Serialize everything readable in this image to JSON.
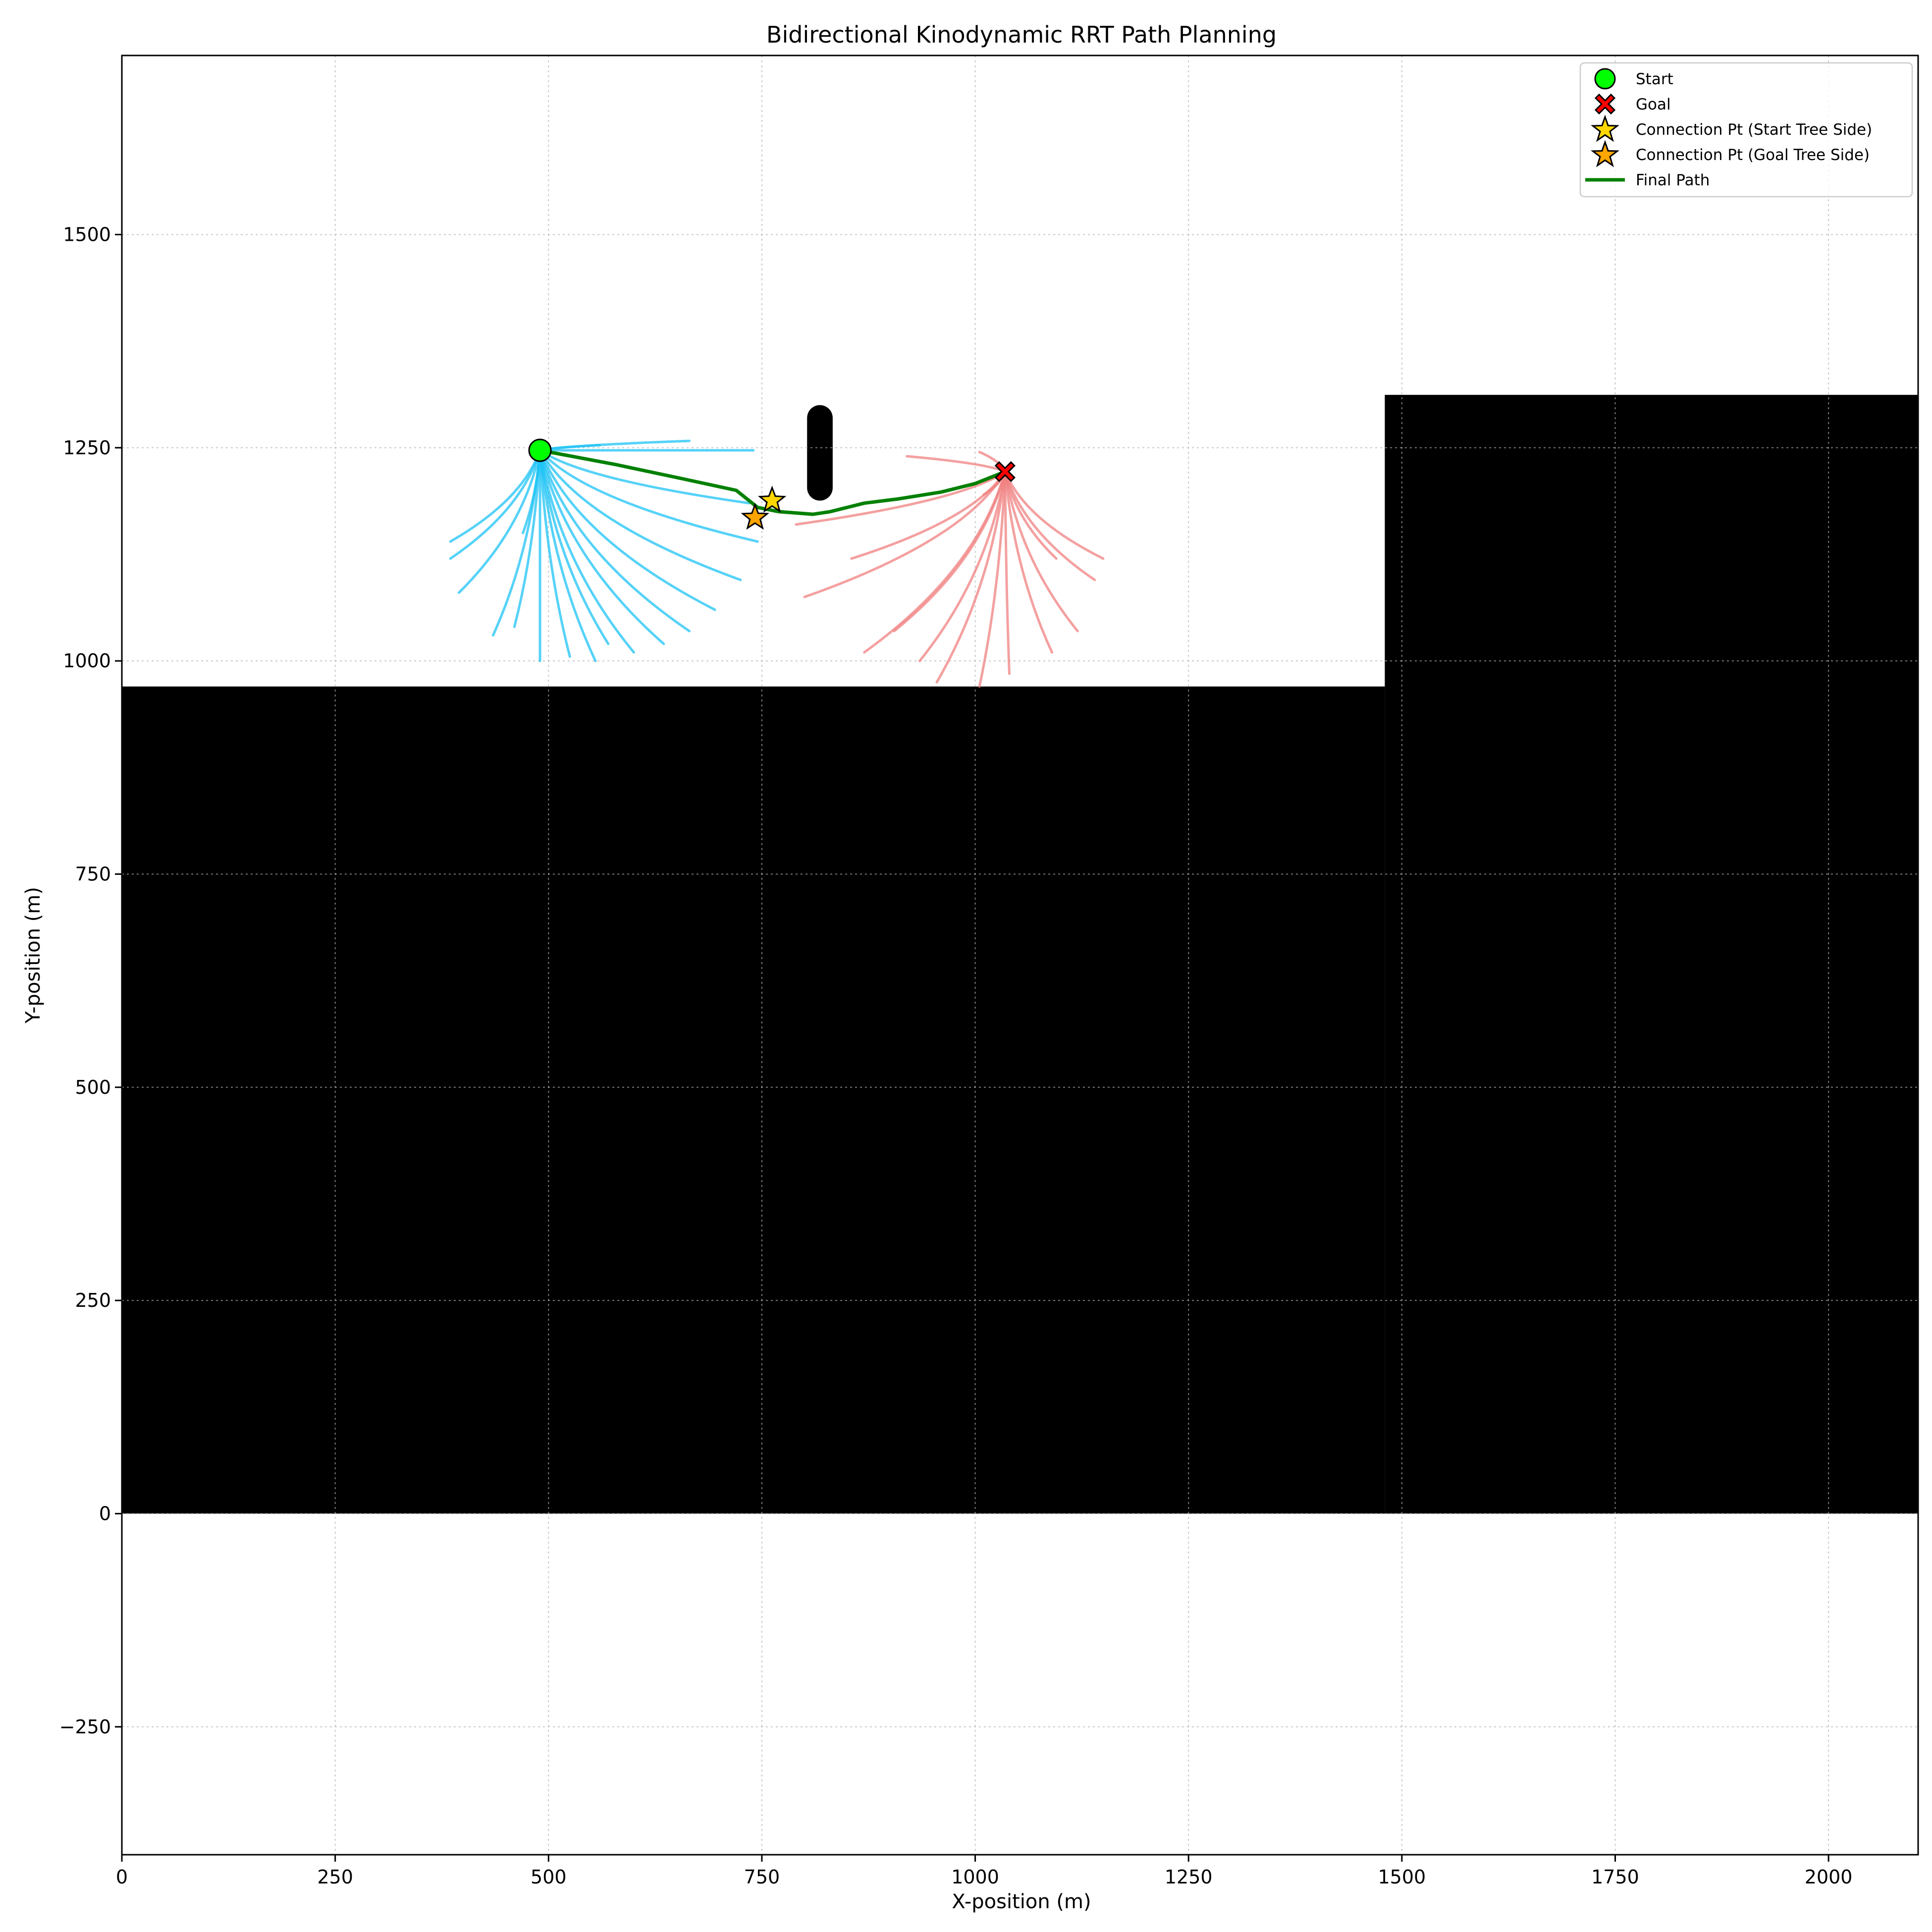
{
  "chart_data": {
    "type": "scatter",
    "title": "Bidirectional Kinodynamic RRT Path Planning",
    "xlabel": "X-position (m)",
    "ylabel": "Y-position (m)",
    "xlim": [
      0,
      2105
    ],
    "ylim": [
      -400,
      1710
    ],
    "xticks": [
      0,
      250,
      500,
      750,
      1000,
      1250,
      1500,
      1750,
      2000
    ],
    "yticks": [
      -250,
      0,
      250,
      500,
      750,
      1000,
      1250,
      1500
    ],
    "xtick_labels": [
      "0",
      "250",
      "500",
      "750",
      "1000",
      "1250",
      "1500",
      "1750",
      "2000"
    ],
    "ytick_labels": [
      "−250",
      "0",
      "250",
      "500",
      "750",
      "1000",
      "1250",
      "1500"
    ],
    "grid": true,
    "legend_position": "top-right",
    "legend": [
      {
        "label": "Start",
        "marker": "circle",
        "color": "#00ff00"
      },
      {
        "label": "Goal",
        "marker": "x",
        "color": "#ff0000"
      },
      {
        "label": "Connection Pt (Start Tree Side)",
        "marker": "star",
        "color": "#ffd700"
      },
      {
        "label": "Connection Pt (Goal Tree Side)",
        "marker": "star",
        "color": "#ffa500"
      },
      {
        "label": "Final Path",
        "marker": "line",
        "color": "#008000"
      }
    ],
    "obstacles": [
      {
        "x": [
          0,
          1480
        ],
        "y": [
          0,
          970
        ]
      },
      {
        "x": [
          1480,
          2105
        ],
        "y": [
          0,
          1312
        ]
      },
      {
        "x": [
          803,
          833
        ],
        "y": [
          1188,
          1300
        ]
      }
    ],
    "start": [
      490,
      1247
    ],
    "goal": [
      1035,
      1222
    ],
    "connection_start_side": [
      762,
      1188
    ],
    "connection_goal_side": [
      742,
      1168
    ],
    "final_path": {
      "x": [
        490,
        580,
        660,
        720,
        745,
        770,
        810,
        830,
        870,
        910,
        960,
        1000,
        1035
      ],
      "y": [
        1247,
        1230,
        1213,
        1200,
        1180,
        1175,
        1172,
        1175,
        1185,
        1190,
        1198,
        1208,
        1222
      ]
    },
    "start_tree": {
      "root": [
        490,
        1247
      ],
      "color": "#1ec3f5",
      "tips": [
        [
          740,
          1247
        ],
        [
          665,
          1258
        ],
        [
          560,
          1253
        ],
        [
          735,
          1185
        ],
        [
          745,
          1140
        ],
        [
          725,
          1095
        ],
        [
          695,
          1060
        ],
        [
          665,
          1035
        ],
        [
          635,
          1020
        ],
        [
          600,
          1010
        ],
        [
          570,
          1020
        ],
        [
          555,
          1000
        ],
        [
          525,
          1005
        ],
        [
          490,
          1000
        ],
        [
          460,
          1040
        ],
        [
          435,
          1030
        ],
        [
          395,
          1080
        ],
        [
          385,
          1120
        ],
        [
          385,
          1140
        ],
        [
          470,
          1150
        ]
      ]
    },
    "goal_tree": {
      "root": [
        1035,
        1222
      ],
      "color": "#f08080",
      "tips": [
        [
          920,
          1240
        ],
        [
          1005,
          1245
        ],
        [
          790,
          1160
        ],
        [
          800,
          1075
        ],
        [
          855,
          1120
        ],
        [
          870,
          1010
        ],
        [
          905,
          1035
        ],
        [
          935,
          1000
        ],
        [
          955,
          975
        ],
        [
          1005,
          970
        ],
        [
          1040,
          985
        ],
        [
          1090,
          1010
        ],
        [
          1120,
          1035
        ],
        [
          1140,
          1095
        ],
        [
          1150,
          1120
        ],
        [
          1095,
          1120
        ],
        [
          985,
          1205
        ],
        [
          1010,
          1195
        ]
      ]
    }
  }
}
